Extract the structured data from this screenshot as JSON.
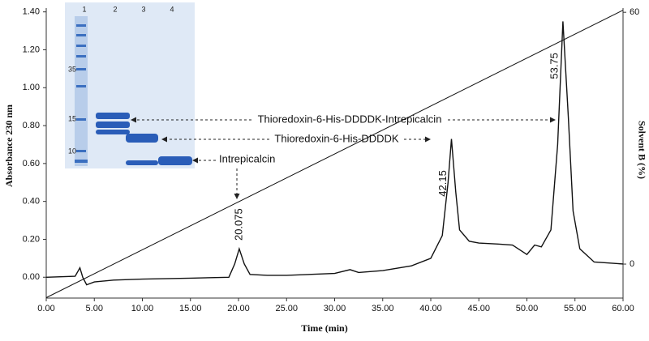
{
  "chart_data": {
    "type": "line",
    "x_label": "Time (min)",
    "y_label": "Absorbance 230 nm",
    "y2_label": "Solvent B (%)",
    "xlim": [
      0,
      60
    ],
    "ylim": [
      -0.11,
      1.42
    ],
    "y2lim": [
      -8.1,
      61
    ],
    "xticks": [
      {
        "value": 0,
        "label": "0.00"
      },
      {
        "value": 5,
        "label": "5.00"
      },
      {
        "value": 10,
        "label": "10.00"
      },
      {
        "value": 15,
        "label": "15.00"
      },
      {
        "value": 20,
        "label": "20.00"
      },
      {
        "value": 25,
        "label": "25.00"
      },
      {
        "value": 30,
        "label": "30.00"
      },
      {
        "value": 35,
        "label": "35.00"
      },
      {
        "value": 40,
        "label": "40.00"
      },
      {
        "value": 45,
        "label": "45.00"
      },
      {
        "value": 50,
        "label": "50.00"
      },
      {
        "value": 55,
        "label": "55.00"
      },
      {
        "value": 60,
        "label": "60.00"
      }
    ],
    "yticks": [
      {
        "value": 0,
        "label": "0.00"
      },
      {
        "value": 0.2,
        "label": "0.20"
      },
      {
        "value": 0.4,
        "label": "0.40"
      },
      {
        "value": 0.6,
        "label": "0.60"
      },
      {
        "value": 0.8,
        "label": "0.80"
      },
      {
        "value": 1,
        "label": "1.00"
      },
      {
        "value": 1.2,
        "label": "1.20"
      },
      {
        "value": 1.4,
        "label": "1.40"
      }
    ],
    "y2ticks": [
      0,
      60
    ],
    "series": [
      {
        "color": "#111111",
        "x": [
          0,
          3.0,
          3.5,
          3.8,
          4.2,
          5,
          7,
          10,
          15,
          19,
          19.6,
          20.075,
          20.6,
          21.2,
          23,
          25,
          30,
          31.6,
          32.5,
          35,
          38,
          40,
          41.2,
          41.8,
          42.15,
          42.6,
          43,
          44,
          45,
          47,
          48.5,
          50,
          50.8,
          51.5,
          52.5,
          53.2,
          53.75,
          54.3,
          54.8,
          55.5,
          57,
          60
        ],
        "values": [
          0,
          0.005,
          0.05,
          0.0,
          -0.04,
          -0.025,
          -0.015,
          -0.01,
          -0.005,
          0.0,
          0.07,
          0.15,
          0.07,
          0.015,
          0.01,
          0.01,
          0.02,
          0.04,
          0.025,
          0.035,
          0.06,
          0.1,
          0.22,
          0.5,
          0.73,
          0.45,
          0.25,
          0.19,
          0.18,
          0.175,
          0.17,
          0.12,
          0.17,
          0.16,
          0.25,
          0.7,
          1.35,
          0.85,
          0.35,
          0.15,
          0.08,
          0.07
        ]
      },
      {
        "color": "#111111",
        "axis": "y2",
        "x": [
          0,
          60
        ],
        "values": [
          -8,
          60.5
        ]
      }
    ],
    "annotations": [
      "20.075",
      "42.15",
      "53.75",
      "Thioredoxin-6-His-DDDDK-Intrepicalcin",
      "Thioredoxin-6-His-DDDDK",
      "Intrepicalcin"
    ],
    "inset": {
      "lanes": [
        "1",
        "2",
        "3",
        "4"
      ],
      "markers": [
        "35",
        "15",
        "10"
      ]
    }
  }
}
